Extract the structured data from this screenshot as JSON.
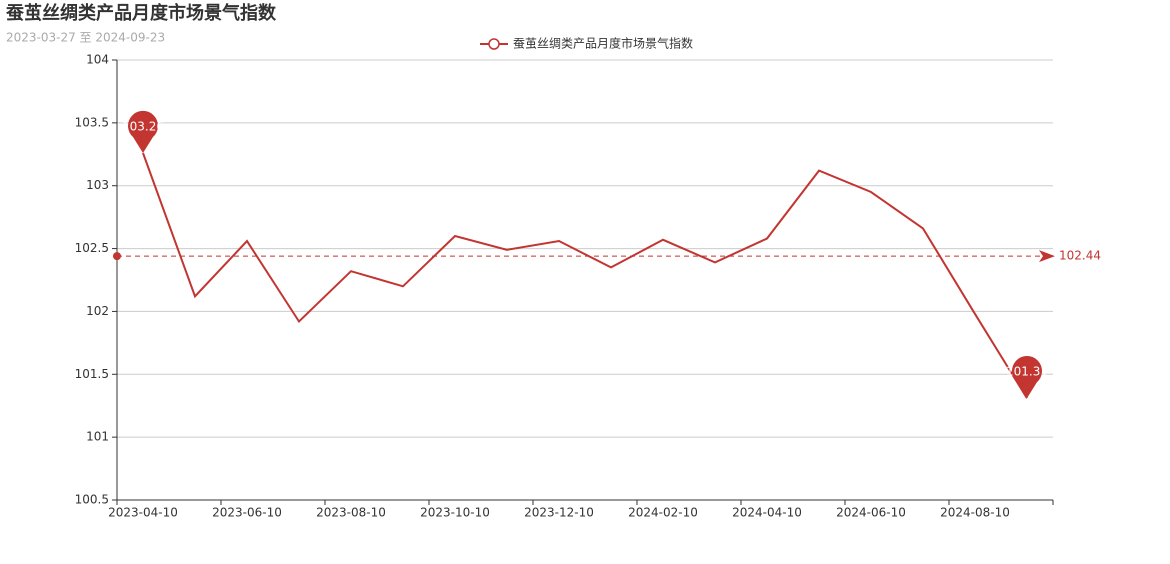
{
  "chart_data": {
    "type": "line",
    "title": "蚕茧丝绸类产品月度市场景气指数",
    "subtitle": "2023-03-27 至 2024-09-23",
    "categories": [
      "2023-04-10",
      null,
      "2023-06-10",
      null,
      "2023-08-10",
      null,
      "2023-10-10",
      null,
      "2023-12-10",
      null,
      "2024-02-10",
      null,
      "2024-04-10",
      null,
      "2024-06-10",
      null,
      "2024-08-10",
      null
    ],
    "series": [
      {
        "name": "蚕茧丝绸类产品月度市场景气指数",
        "color": "#c23531",
        "values": [
          103.26,
          102.12,
          102.56,
          101.92,
          102.32,
          102.2,
          102.6,
          102.49,
          102.56,
          102.35,
          102.57,
          102.39,
          102.58,
          103.12,
          102.95,
          102.66,
          101.98,
          101.31
        ]
      }
    ],
    "max_index": 0,
    "min_index": 17,
    "average_line": 102.44,
    "ylim": [
      100.5,
      104
    ],
    "yticks": [
      100.5,
      101,
      101.5,
      102,
      102.5,
      103,
      103.5,
      104
    ],
    "grid": true,
    "legend": "top"
  }
}
